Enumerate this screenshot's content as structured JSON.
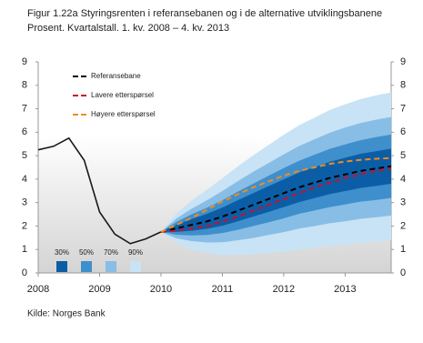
{
  "chart_data": {
    "type": "fan",
    "title": "Figur 1.22a Styringsrenten i referansebanen og i de alternative utviklingsbanene",
    "subtitle": "Prosent. Kvartalstall. 1. kv. 2008 – 4. kv. 2013",
    "source": "Kilde: Norges Bank",
    "x": [
      2008,
      2008.25,
      2008.5,
      2008.75,
      2009,
      2009.25,
      2009.5,
      2009.75,
      2010,
      2010.25,
      2010.5,
      2010.75,
      2011,
      2011.25,
      2011.5,
      2011.75,
      2012,
      2012.25,
      2012.5,
      2012.75,
      2013,
      2013.25,
      2013.5,
      2013.75
    ],
    "xlim": [
      2008,
      2013.75
    ],
    "xticks": [
      2008,
      2009,
      2010,
      2011,
      2012,
      2013
    ],
    "ylim": [
      0,
      9
    ],
    "yticks": [
      0,
      1,
      2,
      3,
      4,
      5,
      6,
      7,
      8,
      9
    ],
    "y2lim": [
      0,
      9
    ],
    "y2ticks": [
      0,
      1,
      2,
      3,
      4,
      5,
      6,
      7,
      8,
      9
    ],
    "bands": [
      {
        "name": "90%",
        "color": "#c8e3f5",
        "upper": [
          null,
          null,
          null,
          null,
          null,
          null,
          null,
          null,
          1.75,
          2.53,
          3.09,
          3.55,
          4.04,
          4.54,
          5.01,
          5.45,
          5.89,
          6.3,
          6.62,
          6.95,
          7.19,
          7.41,
          7.57,
          7.7
        ],
        "lower": [
          null,
          null,
          null,
          null,
          null,
          null,
          null,
          null,
          1.75,
          1.27,
          1.01,
          0.85,
          0.76,
          0.76,
          0.79,
          0.85,
          0.91,
          1.0,
          1.08,
          1.15,
          1.21,
          1.29,
          1.33,
          1.4
        ]
      },
      {
        "name": "70%",
        "color": "#88bde6",
        "upper": [
          null,
          null,
          null,
          null,
          null,
          null,
          null,
          null,
          1.75,
          2.32,
          2.74,
          3.1,
          3.49,
          3.91,
          4.31,
          4.68,
          5.06,
          5.41,
          5.7,
          5.98,
          6.2,
          6.39,
          6.53,
          6.65
        ],
        "lower": [
          null,
          null,
          null,
          null,
          null,
          null,
          null,
          null,
          1.75,
          1.48,
          1.36,
          1.3,
          1.31,
          1.39,
          1.49,
          1.62,
          1.74,
          1.89,
          2.0,
          2.12,
          2.2,
          2.31,
          2.37,
          2.45
        ]
      },
      {
        "name": "50%",
        "color": "#3f8fcc",
        "upper": [
          null,
          null,
          null,
          null,
          null,
          null,
          null,
          null,
          1.75,
          2.17,
          2.5,
          2.78,
          3.1,
          3.46,
          3.8,
          4.14,
          4.47,
          4.78,
          5.04,
          5.29,
          5.48,
          5.66,
          5.79,
          5.9
        ],
        "lower": [
          null,
          null,
          null,
          null,
          null,
          null,
          null,
          null,
          1.75,
          1.63,
          1.6,
          1.62,
          1.7,
          1.84,
          2.0,
          2.16,
          2.33,
          2.52,
          2.66,
          2.81,
          2.92,
          3.04,
          3.11,
          3.2
        ]
      },
      {
        "name": "30%",
        "color": "#0b5ea6",
        "upper": [
          null,
          null,
          null,
          null,
          null,
          null,
          null,
          null,
          1.75,
          2.05,
          2.3,
          2.52,
          2.79,
          3.1,
          3.4,
          3.7,
          3.99,
          4.28,
          4.51,
          4.74,
          4.91,
          5.08,
          5.19,
          5.3
        ],
        "lower": [
          null,
          null,
          null,
          null,
          null,
          null,
          null,
          null,
          1.75,
          1.75,
          1.8,
          1.88,
          2.01,
          2.2,
          2.4,
          2.6,
          2.81,
          3.02,
          3.19,
          3.36,
          3.49,
          3.62,
          3.71,
          3.8
        ]
      }
    ],
    "series": [
      {
        "color": "#1a1a1a",
        "dashed": false,
        "values": [
          5.25,
          5.4,
          5.75,
          4.8,
          2.6,
          1.65,
          1.25,
          1.45,
          1.75,
          null,
          null,
          null,
          null,
          null,
          null,
          null,
          null,
          null,
          null,
          null,
          null,
          null,
          null,
          null
        ]
      },
      {
        "name": "Referansebane",
        "color": "#000000",
        "dashed": true,
        "values": [
          null,
          null,
          null,
          null,
          null,
          null,
          null,
          null,
          1.75,
          1.9,
          2.05,
          2.2,
          2.4,
          2.65,
          2.9,
          3.15,
          3.4,
          3.65,
          3.85,
          4.05,
          4.2,
          4.35,
          4.45,
          4.55
        ]
      },
      {
        "name": "Lavere etterspørsel",
        "color": "#c8102e",
        "dashed": true,
        "values": [
          null,
          null,
          null,
          null,
          null,
          null,
          null,
          null,
          1.75,
          1.8,
          1.9,
          2.0,
          2.2,
          2.4,
          2.65,
          2.9,
          3.15,
          3.4,
          3.65,
          3.85,
          4.05,
          4.2,
          4.35,
          4.45
        ]
      },
      {
        "name": "Høyere etterspørsel",
        "color": "#f08c1e",
        "dashed": true,
        "values": [
          null,
          null,
          null,
          null,
          null,
          null,
          null,
          null,
          1.75,
          2.05,
          2.35,
          2.7,
          3.05,
          3.35,
          3.65,
          3.9,
          4.15,
          4.35,
          4.5,
          4.65,
          4.75,
          4.82,
          4.87,
          4.9
        ]
      }
    ]
  }
}
